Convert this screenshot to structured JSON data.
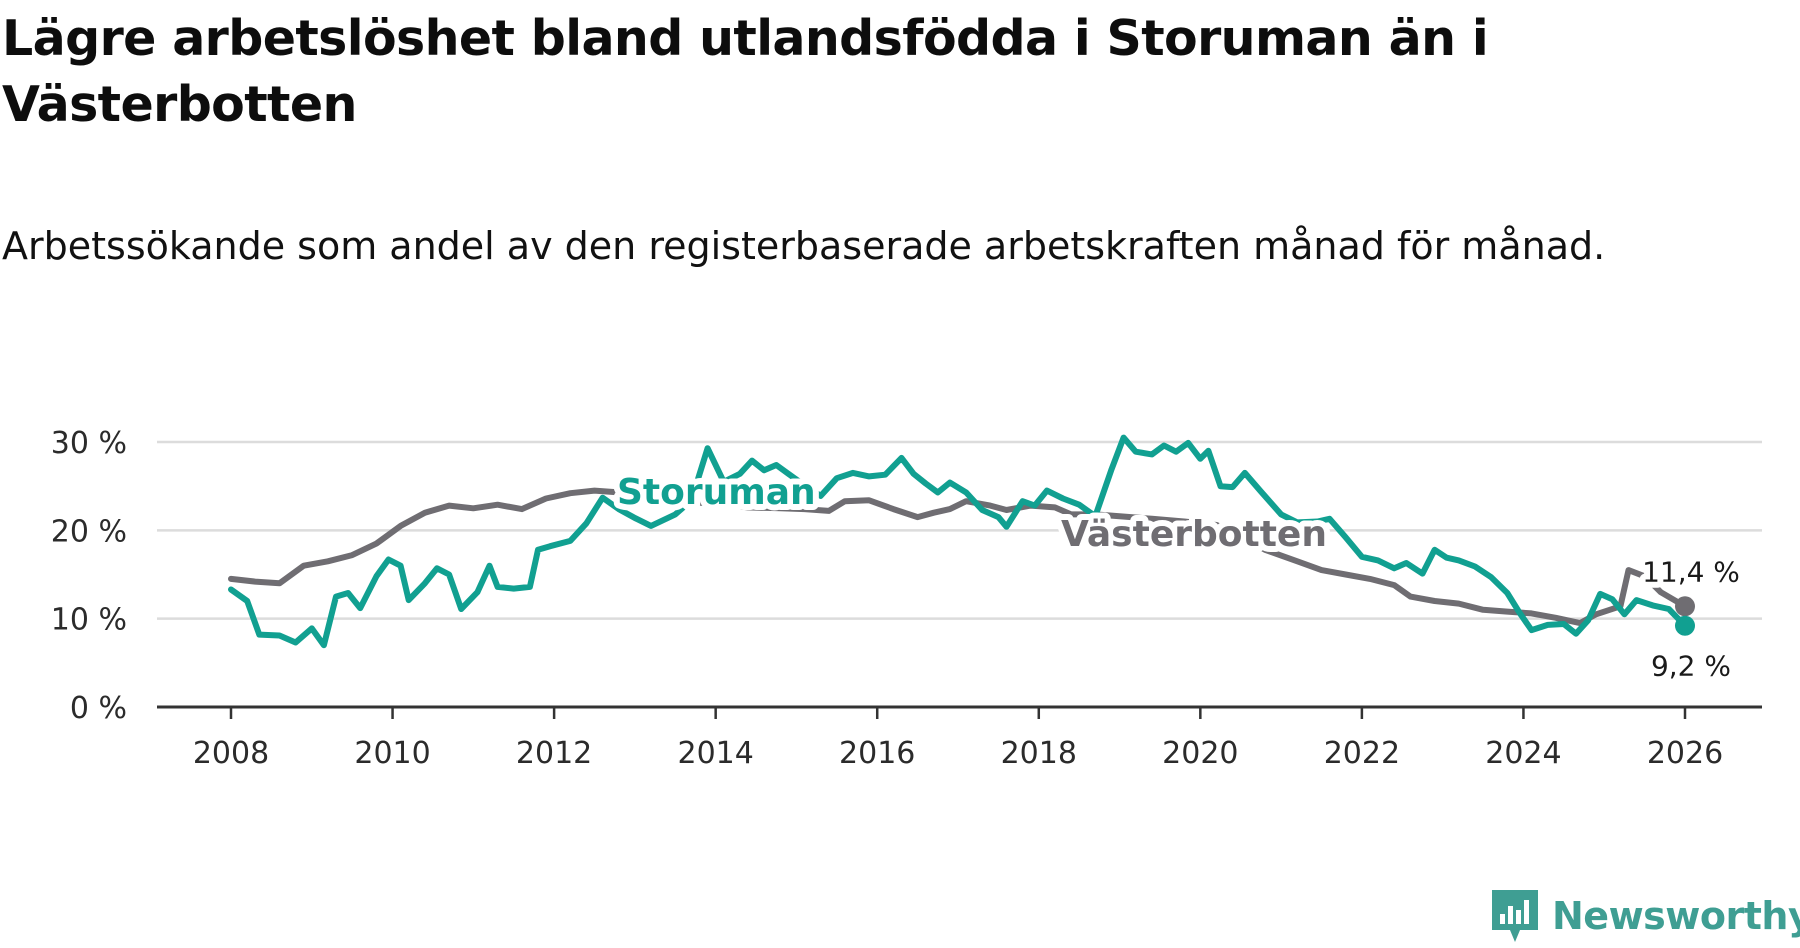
{
  "header": {
    "title": "Lägre arbetslöshet bland utlandsfödda i Storuman än i Västerbotten",
    "subtitle": "Arbetssökande som andel av den registerbaserade arbetskraften månad för månad."
  },
  "brand": {
    "name": "Newsworthy"
  },
  "colors": {
    "storuman": "#11a091",
    "vasterbotten": "#6f6d72",
    "grid": "#dcdcdc",
    "axis": "#333333",
    "brand": "#3f9e93"
  },
  "chart_data": {
    "type": "line",
    "title": "Lägre arbetslöshet bland utlandsfödda i Storuman än i Västerbotten",
    "subtitle": "Arbetssökande som andel av den registerbaserade arbetskraften månad för månad.",
    "xlabel": "",
    "ylabel": "",
    "xlim": [
      2007.9,
      2027.0
    ],
    "ylim": [
      0,
      30
    ],
    "x_ticks": [
      2008,
      2010,
      2012,
      2014,
      2016,
      2018,
      2020,
      2022,
      2024,
      2026
    ],
    "x_tick_labels": [
      "2008",
      "2010",
      "2012",
      "2014",
      "2016",
      "2018",
      "2020",
      "2022",
      "2024",
      "2026"
    ],
    "y_ticks": [
      0,
      10,
      20,
      30
    ],
    "y_tick_labels": [
      "0 %",
      "10 %",
      "20 %",
      "30 %"
    ],
    "grid": true,
    "series": [
      {
        "name": "Västerbotten",
        "label": "Västerbotten",
        "end_label": "11,4 %",
        "points": [
          [
            2008.0,
            14.5
          ],
          [
            2008.3,
            14.2
          ],
          [
            2008.6,
            14.0
          ],
          [
            2008.9,
            16.0
          ],
          [
            2009.2,
            16.5
          ],
          [
            2009.5,
            17.2
          ],
          [
            2009.8,
            18.5
          ],
          [
            2010.1,
            20.5
          ],
          [
            2010.4,
            22.0
          ],
          [
            2010.7,
            22.8
          ],
          [
            2011.0,
            22.5
          ],
          [
            2011.3,
            22.9
          ],
          [
            2011.6,
            22.4
          ],
          [
            2011.9,
            23.6
          ],
          [
            2012.2,
            24.2
          ],
          [
            2012.5,
            24.5
          ],
          [
            2012.8,
            24.3
          ],
          [
            2013.1,
            24.0
          ],
          [
            2013.4,
            23.5
          ],
          [
            2013.7,
            23.2
          ],
          [
            2014.0,
            23.0
          ],
          [
            2014.4,
            22.6
          ],
          [
            2014.8,
            22.5
          ],
          [
            2015.1,
            22.4
          ],
          [
            2015.4,
            22.2
          ],
          [
            2015.6,
            23.3
          ],
          [
            2015.9,
            23.4
          ],
          [
            2016.2,
            22.4
          ],
          [
            2016.5,
            21.5
          ],
          [
            2016.7,
            22.0
          ],
          [
            2016.9,
            22.4
          ],
          [
            2017.1,
            23.3
          ],
          [
            2017.4,
            22.8
          ],
          [
            2017.6,
            22.3
          ],
          [
            2017.9,
            22.8
          ],
          [
            2018.2,
            22.6
          ],
          [
            2018.4,
            21.8
          ],
          [
            2018.7,
            21.8
          ],
          [
            2019.0,
            21.6
          ],
          [
            2019.4,
            21.3
          ],
          [
            2019.8,
            21.0
          ],
          [
            2020.2,
            20.6
          ],
          [
            2020.5,
            19.3
          ],
          [
            2020.8,
            17.8
          ],
          [
            2021.2,
            16.5
          ],
          [
            2021.5,
            15.5
          ],
          [
            2021.8,
            15.0
          ],
          [
            2022.1,
            14.5
          ],
          [
            2022.4,
            13.8
          ],
          [
            2022.6,
            12.5
          ],
          [
            2022.9,
            12.0
          ],
          [
            2023.2,
            11.7
          ],
          [
            2023.5,
            11.0
          ],
          [
            2023.8,
            10.8
          ],
          [
            2024.1,
            10.6
          ],
          [
            2024.4,
            10.1
          ],
          [
            2024.7,
            9.5
          ],
          [
            2024.9,
            10.5
          ],
          [
            2025.2,
            11.4
          ],
          [
            2025.3,
            15.5
          ],
          [
            2025.5,
            14.8
          ],
          [
            2025.7,
            13.0
          ],
          [
            2026.0,
            11.4
          ]
        ]
      },
      {
        "name": "Storuman",
        "label": "Storuman",
        "end_label": "9,2 %",
        "points": [
          [
            2008.0,
            13.3
          ],
          [
            2008.2,
            12.0
          ],
          [
            2008.35,
            8.2
          ],
          [
            2008.6,
            8.1
          ],
          [
            2008.8,
            7.3
          ],
          [
            2009.0,
            8.9
          ],
          [
            2009.15,
            7.0
          ],
          [
            2009.3,
            12.5
          ],
          [
            2009.45,
            12.9
          ],
          [
            2009.6,
            11.2
          ],
          [
            2009.8,
            14.8
          ],
          [
            2009.95,
            16.7
          ],
          [
            2010.1,
            16.0
          ],
          [
            2010.2,
            12.1
          ],
          [
            2010.4,
            14.0
          ],
          [
            2010.55,
            15.7
          ],
          [
            2010.7,
            15.0
          ],
          [
            2010.85,
            11.1
          ],
          [
            2011.05,
            13.0
          ],
          [
            2011.2,
            16.0
          ],
          [
            2011.3,
            13.6
          ],
          [
            2011.5,
            13.4
          ],
          [
            2011.7,
            13.6
          ],
          [
            2011.8,
            17.8
          ],
          [
            2011.95,
            18.2
          ],
          [
            2012.2,
            18.8
          ],
          [
            2012.4,
            20.8
          ],
          [
            2012.6,
            23.7
          ],
          [
            2012.8,
            22.4
          ],
          [
            2013.0,
            21.4
          ],
          [
            2013.2,
            20.5
          ],
          [
            2013.5,
            21.8
          ],
          [
            2013.7,
            23.4
          ],
          [
            2013.9,
            29.3
          ],
          [
            2014.1,
            25.5
          ],
          [
            2014.3,
            26.4
          ],
          [
            2014.45,
            27.9
          ],
          [
            2014.6,
            26.8
          ],
          [
            2014.75,
            27.4
          ],
          [
            2014.9,
            26.4
          ],
          [
            2015.1,
            25.1
          ],
          [
            2015.3,
            23.9
          ],
          [
            2015.5,
            25.9
          ],
          [
            2015.7,
            26.5
          ],
          [
            2015.9,
            26.1
          ],
          [
            2016.1,
            26.3
          ],
          [
            2016.3,
            28.2
          ],
          [
            2016.45,
            26.4
          ],
          [
            2016.6,
            25.3
          ],
          [
            2016.75,
            24.3
          ],
          [
            2016.9,
            25.4
          ],
          [
            2017.1,
            24.3
          ],
          [
            2017.3,
            22.3
          ],
          [
            2017.5,
            21.5
          ],
          [
            2017.6,
            20.4
          ],
          [
            2017.8,
            23.3
          ],
          [
            2017.95,
            22.8
          ],
          [
            2018.1,
            24.5
          ],
          [
            2018.3,
            23.6
          ],
          [
            2018.5,
            22.9
          ],
          [
            2018.7,
            21.6
          ],
          [
            2018.9,
            26.9
          ],
          [
            2019.05,
            30.5
          ],
          [
            2019.2,
            28.9
          ],
          [
            2019.4,
            28.6
          ],
          [
            2019.55,
            29.6
          ],
          [
            2019.7,
            28.9
          ],
          [
            2019.85,
            29.9
          ],
          [
            2020.0,
            28.1
          ],
          [
            2020.1,
            29.0
          ],
          [
            2020.25,
            25.0
          ],
          [
            2020.4,
            24.9
          ],
          [
            2020.55,
            26.5
          ],
          [
            2020.75,
            24.4
          ],
          [
            2021.0,
            21.8
          ],
          [
            2021.2,
            20.9
          ],
          [
            2021.45,
            21.0
          ],
          [
            2021.6,
            21.3
          ],
          [
            2021.8,
            19.2
          ],
          [
            2022.0,
            17.0
          ],
          [
            2022.2,
            16.6
          ],
          [
            2022.4,
            15.7
          ],
          [
            2022.55,
            16.3
          ],
          [
            2022.75,
            15.1
          ],
          [
            2022.9,
            17.8
          ],
          [
            2023.05,
            16.9
          ],
          [
            2023.2,
            16.6
          ],
          [
            2023.4,
            15.9
          ],
          [
            2023.6,
            14.7
          ],
          [
            2023.8,
            12.9
          ],
          [
            2023.95,
            10.7
          ],
          [
            2024.1,
            8.7
          ],
          [
            2024.3,
            9.3
          ],
          [
            2024.5,
            9.4
          ],
          [
            2024.65,
            8.3
          ],
          [
            2024.8,
            9.8
          ],
          [
            2024.95,
            12.8
          ],
          [
            2025.1,
            12.2
          ],
          [
            2025.25,
            10.5
          ],
          [
            2025.4,
            12.1
          ],
          [
            2025.6,
            11.5
          ],
          [
            2025.8,
            11.1
          ],
          [
            2026.0,
            9.2
          ]
        ]
      }
    ],
    "annotations": [
      "11,4 %",
      "9,2 %"
    ]
  }
}
